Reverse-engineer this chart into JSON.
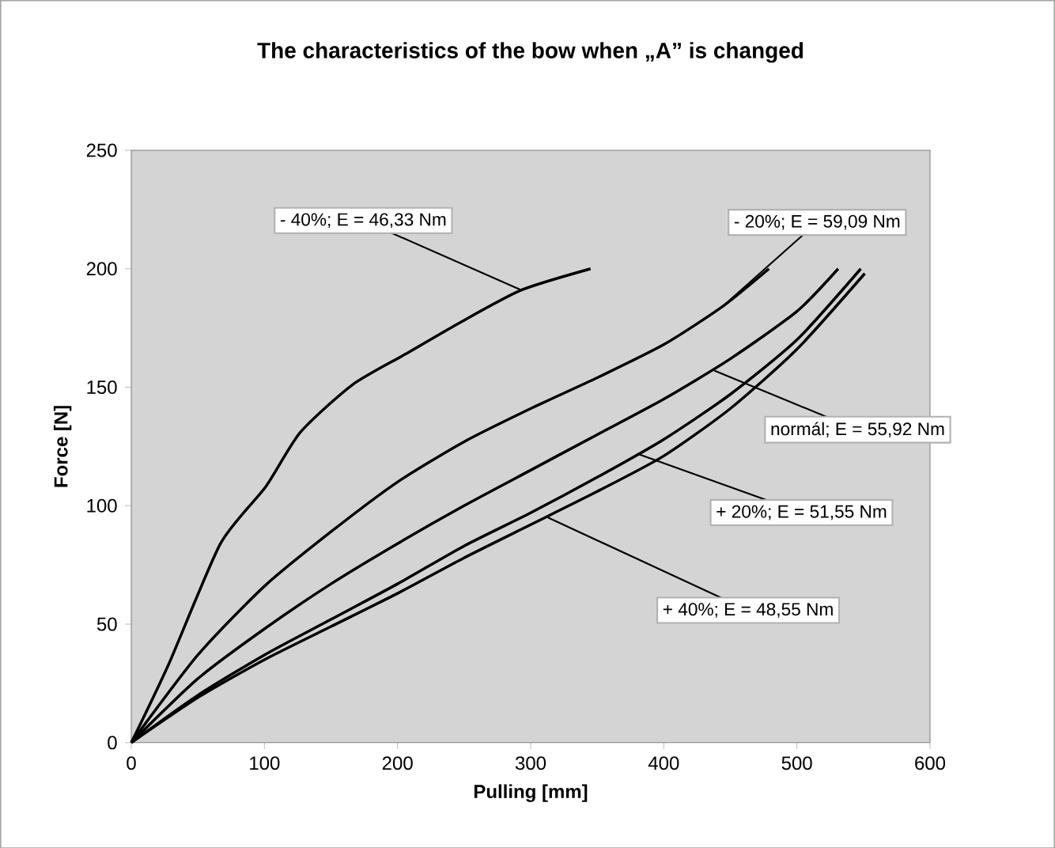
{
  "chart_data": {
    "type": "line",
    "title": "The characteristics of the bow when „A” is changed",
    "xlabel": "Pulling [mm]",
    "ylabel": "Force [N]",
    "xlim": [
      0,
      600
    ],
    "xticks": [
      0,
      100,
      200,
      300,
      400,
      500,
      600
    ],
    "ylim": [
      0,
      250
    ],
    "yticks": [
      0,
      50,
      100,
      150,
      200,
      250
    ],
    "grid": false,
    "marker": "none",
    "line_style": "solid",
    "series": [
      {
        "color": "#000000",
        "x": [
          0,
          28,
          67,
          101,
          127,
          166,
          206,
          246,
          293,
          345
        ],
        "values": [
          0,
          33,
          84,
          108,
          131,
          151,
          164,
          177,
          191,
          200
        ]
      },
      {
        "color": "#000000",
        "x": [
          0,
          50,
          100,
          150,
          200,
          250,
          300,
          350,
          400,
          444,
          479
        ],
        "values": [
          0,
          37,
          66,
          89,
          110,
          127,
          141,
          154,
          168,
          184,
          200
        ]
      },
      {
        "color": "#000000",
        "x": [
          0,
          50,
          100,
          150,
          200,
          250,
          300,
          350,
          400,
          450,
          500,
          531
        ],
        "values": [
          0,
          27,
          48,
          67,
          84,
          100,
          115,
          130,
          145,
          162,
          182,
          200
        ]
      },
      {
        "color": "#000000",
        "x": [
          0,
          50,
          100,
          150,
          200,
          250,
          300,
          350,
          400,
          450,
          500,
          548
        ],
        "values": [
          0,
          20,
          37,
          52,
          67,
          83,
          97,
          112,
          128,
          147,
          170,
          200
        ]
      },
      {
        "color": "#000000",
        "x": [
          0,
          50,
          100,
          150,
          200,
          250,
          300,
          350,
          400,
          450,
          500,
          551
        ],
        "values": [
          0,
          19,
          35,
          49,
          63,
          78,
          92,
          106,
          121,
          141,
          166,
          198
        ]
      }
    ],
    "annotations": [
      {
        "text": "- 40%; E = 46,33 Nm",
        "x": 293,
        "y": 191
      },
      {
        "text": "- 20%; E = 59,09 Nm",
        "x": 444,
        "y": 184
      },
      {
        "text": "normál; E = 55,92 Nm",
        "x": 438,
        "y": 157
      },
      {
        "text": "+ 20%; E = 51,55 Nm",
        "x": 380,
        "y": 122
      },
      {
        "text": "+ 40%; E = 48,55 Nm",
        "x": 313,
        "y": 95
      }
    ]
  }
}
